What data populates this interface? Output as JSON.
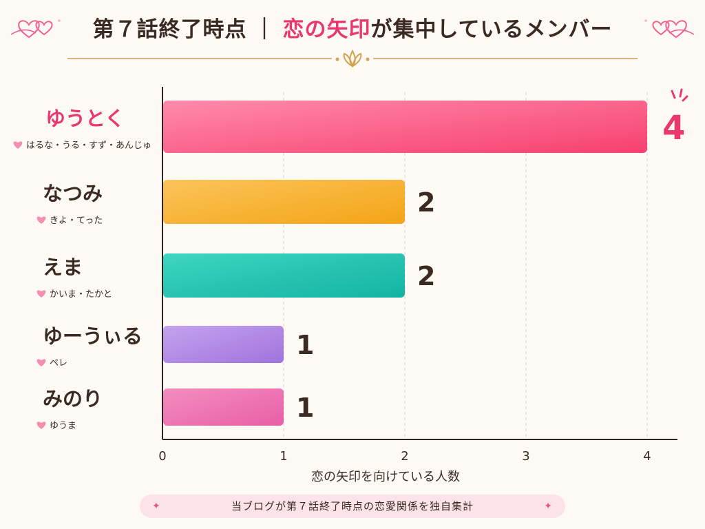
{
  "title": {
    "part1": "第７話終了時点",
    "separator": "｜",
    "part2": "恋の矢印",
    "part3": "が集中しているメンバー"
  },
  "footer": {
    "text": "当ブログが第７話終了時点の恋愛関係を独自集計",
    "sparkle": "✦"
  },
  "colors": {
    "title_accent": "#e8386e",
    "heart": "#f58fb0",
    "text_dark": "#3a2a22"
  },
  "chart_data": {
    "type": "bar",
    "orientation": "horizontal",
    "categories": [
      "ゆうとく",
      "なつみ",
      "えま",
      "ゆーうぃる",
      "みのり"
    ],
    "sublabels": [
      "はるな・うる・すず・あんじゅ",
      "きよ・てった",
      "かいま・たかと",
      "ペレ",
      "ゆうま"
    ],
    "values": [
      4,
      2,
      2,
      1,
      1
    ],
    "data_labels": [
      "4",
      "2",
      "2",
      "1",
      "1"
    ],
    "bar_colors": [
      [
        "#ff8bab",
        "#f7406f"
      ],
      [
        "#fbc45a",
        "#f4a416"
      ],
      [
        "#3fd6c0",
        "#13b3a3"
      ],
      [
        "#c4a3ee",
        "#a173dc"
      ],
      [
        "#f28dc0",
        "#e95fa6"
      ]
    ],
    "highlight_color": "#e8386e",
    "xlabel": "恋の矢印を向けている人数",
    "xlim": [
      0,
      4
    ],
    "xticks": [
      "0",
      "1",
      "2",
      "3",
      "4"
    ],
    "grid": "vertical dashed"
  }
}
